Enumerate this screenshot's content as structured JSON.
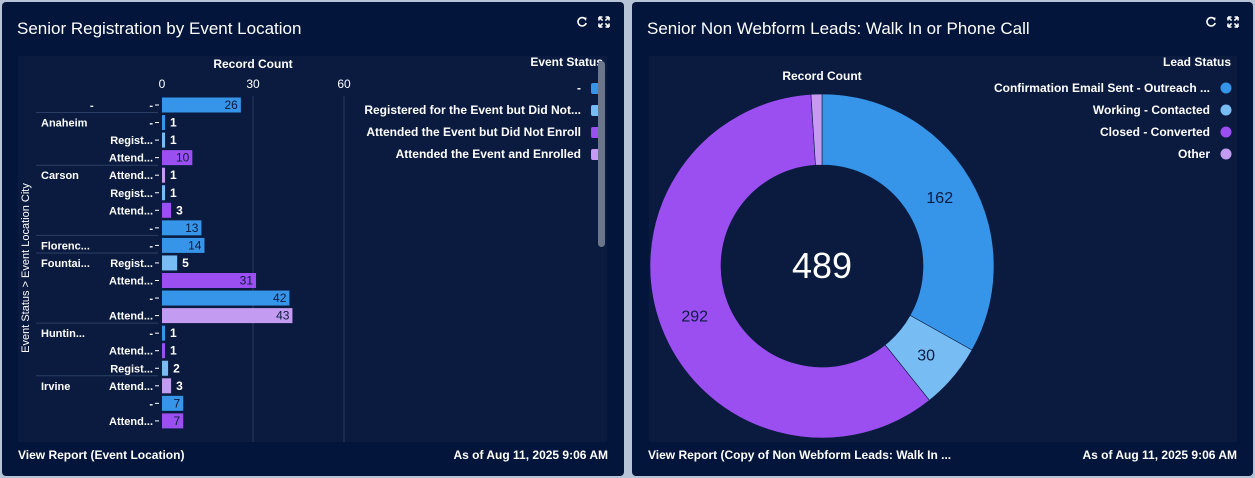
{
  "left_panel": {
    "title": "Senior Registration by Event Location",
    "footer_link": "View Report (Event Location)",
    "timestamp": "As of Aug 11, 2025 9:06 AM",
    "legend_title": "Event Status",
    "legend_items": [
      {
        "label": "-",
        "color": "#3695e8"
      },
      {
        "label": "Registered for the Event but Did Not...",
        "color": "#78bcf4"
      },
      {
        "label": "Attended the Event but Did Not Enroll",
        "color": "#9b4ff0"
      },
      {
        "label": "Attended the Event and Enrolled",
        "color": "#c39cf1"
      }
    ]
  },
  "right_panel": {
    "title": "Senior Non Webform Leads: Walk In or Phone Call",
    "footer_link": "View Report (Copy of Non Webform Leads: Walk In ...",
    "timestamp": "As of Aug 11, 2025 9:06 AM",
    "legend_title": "Lead Status",
    "legend_items": [
      {
        "label": "Confirmation Email Sent - Outreach ...",
        "color": "#3695e8"
      },
      {
        "label": "Working - Contacted",
        "color": "#78bcf4"
      },
      {
        "label": "Closed - Converted",
        "color": "#9b4ff0"
      },
      {
        "label": "Other",
        "color": "#c39cf1"
      }
    ],
    "center_total": "489"
  },
  "chart_data": [
    {
      "type": "bar",
      "orientation": "horizontal",
      "title": "Senior Registration by Event Location",
      "xlabel": "Record Count",
      "ylabel": "Event Status > Event Location City",
      "x_ticks": [
        "0",
        "30",
        "60"
      ],
      "xlim": [
        0,
        60
      ],
      "grid": true,
      "legend_position": "top-right",
      "groups": [
        {
          "city": "-",
          "bars": [
            {
              "status": "-",
              "status_label": "-",
              "value": 26,
              "color": "#3695e8",
              "label_inside": true
            }
          ]
        },
        {
          "city": "Anaheim",
          "bars": [
            {
              "status": "-",
              "status_label": "-",
              "value": 1,
              "color": "#3695e8"
            },
            {
              "status": "Registered for the Event but Did Not...",
              "status_label": "Regist...",
              "value": 1,
              "color": "#78bcf4"
            },
            {
              "status": "Attended the Event but Did Not Enroll",
              "status_label": "Attend...",
              "value": 10,
              "color": "#9b4ff0",
              "label_inside": true
            }
          ]
        },
        {
          "city": "Carson",
          "bars": [
            {
              "status": "Attended the Event and Enrolled",
              "status_label": "Attend...",
              "value": 1,
              "color": "#c39cf1"
            },
            {
              "status": "Registered for the Event but Did Not...",
              "status_label": "Regist...",
              "value": 1,
              "color": "#78bcf4"
            },
            {
              "status": "Attended the Event but Did Not Enroll",
              "status_label": "Attend...",
              "value": 3,
              "color": "#9b4ff0"
            },
            {
              "status": "-",
              "status_label": "-",
              "value": 13,
              "color": "#3695e8",
              "label_inside": true
            }
          ]
        },
        {
          "city": "Florenc...",
          "bars": [
            {
              "status": "-",
              "status_label": "-",
              "value": 14,
              "color": "#3695e8",
              "label_inside": true
            }
          ]
        },
        {
          "city": "Fountai...",
          "bars": [
            {
              "status": "Registered for the Event but Did Not...",
              "status_label": "Regist...",
              "value": 5,
              "color": "#78bcf4"
            },
            {
              "status": "Attended the Event but Did Not Enroll",
              "status_label": "Attend...",
              "value": 31,
              "color": "#9b4ff0",
              "label_inside": true
            },
            {
              "status": "-",
              "status_label": "-",
              "value": 42,
              "color": "#3695e8",
              "label_inside": true
            },
            {
              "status": "Attended the Event and Enrolled",
              "status_label": "Attend...",
              "value": 43,
              "color": "#c39cf1",
              "label_inside": true
            }
          ]
        },
        {
          "city": "Huntin...",
          "bars": [
            {
              "status": "-",
              "status_label": "-",
              "value": 1,
              "color": "#3695e8"
            },
            {
              "status": "Attended the Event but Did Not Enroll",
              "status_label": "Attend...",
              "value": 1,
              "color": "#9b4ff0"
            },
            {
              "status": "Registered for the Event but Did Not...",
              "status_label": "Regist...",
              "value": 2,
              "color": "#78bcf4"
            }
          ]
        },
        {
          "city": "Irvine",
          "bars": [
            {
              "status": "Attended the Event and Enrolled",
              "status_label": "Attend...",
              "value": 3,
              "color": "#c39cf1"
            },
            {
              "status": "-",
              "status_label": "-",
              "value": 7,
              "color": "#3695e8",
              "label_inside": true
            },
            {
              "status": "Attended the Event but Did Not Enroll",
              "status_label": "Attend...",
              "value": 7,
              "color": "#9b4ff0",
              "label_inside": true
            }
          ]
        }
      ]
    },
    {
      "type": "pie",
      "variant": "donut",
      "title": "Senior Non Webform Leads: Walk In or Phone Call",
      "measure_label": "Record Count",
      "total": 489,
      "legend_position": "top-right",
      "slices": [
        {
          "label": "Confirmation Email Sent - Outreach ...",
          "value": 162,
          "color": "#3695e8",
          "show_label": true
        },
        {
          "label": "Working - Contacted",
          "value": 30,
          "color": "#78bcf4",
          "show_label": true
        },
        {
          "label": "Closed - Converted",
          "value": 292,
          "color": "#9b4ff0",
          "show_label": true
        },
        {
          "label": "Other",
          "value": 5,
          "color": "#c39cf1",
          "show_label": false
        }
      ]
    }
  ]
}
